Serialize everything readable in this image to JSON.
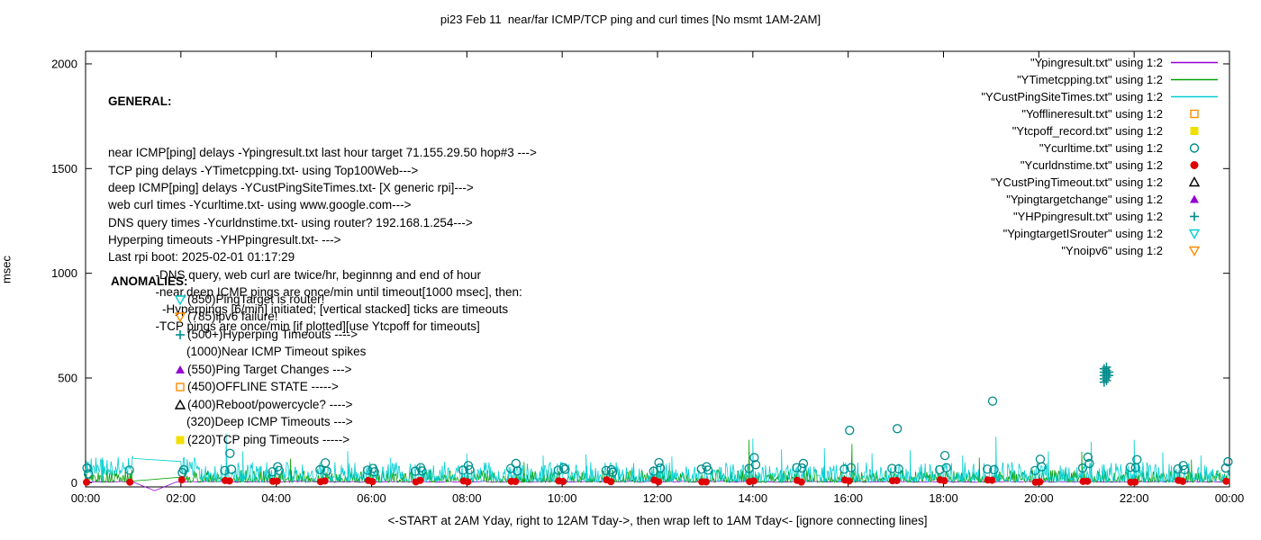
{
  "chart_data": {
    "type": "scatter",
    "title": "pi23 Feb 11  near/far ICMP/TCP ping and curl times [No msmt 1AM-2AM]",
    "xlabel": "<-START at 2AM Yday, right to 12AM Tday->, then wrap left to 1AM Tday<- [ignore connecting lines]",
    "ylabel": "msec",
    "x_range_hours": [
      0,
      24
    ],
    "y_range": [
      0,
      2000
    ],
    "x_ticks": [
      "00:00",
      "02:00",
      "04:00",
      "06:00",
      "08:00",
      "10:00",
      "12:00",
      "14:00",
      "16:00",
      "18:00",
      "20:00",
      "22:00",
      "00:00"
    ],
    "y_ticks": [
      0,
      500,
      1000,
      1500,
      2000
    ],
    "no_measurement_window": "1AM-2AM",
    "grid": false,
    "legend_position": "top-right",
    "series": [
      {
        "name": "Ypingresult",
        "style": "line",
        "color": "#9400d3",
        "gen": {
          "step_min": 3,
          "base": 2,
          "jitter": 5,
          "pow": 1,
          "seed": 3
        },
        "extra": [
          [
            1.0,
            3
          ],
          [
            1.45,
            -38
          ],
          [
            1.9,
            3
          ]
        ]
      },
      {
        "name": "YTimetcpping",
        "style": "line",
        "color": "#00a000",
        "gen": {
          "step_min": 1,
          "base": 2,
          "jitter": 60,
          "pow": 2.2,
          "seed": 5
        },
        "spikes": [
          [
            4.3,
            115
          ],
          [
            9.2,
            100
          ],
          [
            13.92,
            205
          ],
          [
            16.08,
            185
          ],
          [
            18.75,
            120
          ],
          [
            20.9,
            148
          ],
          [
            23.2,
            110
          ]
        ]
      },
      {
        "name": "YCustPingSiteTimes",
        "style": "line",
        "color": "#00ced1",
        "gen": {
          "step_min": 1,
          "base": 4,
          "jitter": 95,
          "pow": 2.0,
          "seed": 9,
          "elevated": [
            0,
            2.3,
            32
          ]
        },
        "spikes": [
          [
            0.35,
            120
          ],
          [
            2.95,
            235
          ],
          [
            3.3,
            150
          ],
          [
            5.5,
            150
          ],
          [
            6.4,
            120
          ],
          [
            8.0,
            140
          ],
          [
            9.6,
            130
          ],
          [
            10.5,
            135
          ],
          [
            12.3,
            125
          ],
          [
            14.0,
            210
          ],
          [
            14.6,
            160
          ],
          [
            15.5,
            165
          ],
          [
            16.5,
            140
          ],
          [
            17.3,
            155
          ],
          [
            18.4,
            130
          ],
          [
            19.1,
            220
          ],
          [
            20.2,
            150
          ],
          [
            21.1,
            195
          ],
          [
            22.0,
            205
          ],
          [
            22.6,
            145
          ],
          [
            23.4,
            130
          ]
        ]
      },
      {
        "name": "Yofflineresult",
        "style": "points",
        "marker": "square-open",
        "color": "#ff8c00",
        "points": []
      },
      {
        "name": "Ytcpoff_record",
        "style": "points",
        "marker": "square-filled",
        "color": "#f0e000",
        "points": []
      },
      {
        "name": "Ycurltime",
        "style": "points",
        "marker": "circle-open",
        "color": "#008b8b",
        "points": [
          [
            0.03,
            70
          ],
          [
            0.06,
            42
          ],
          [
            0.92,
            60
          ],
          [
            2.03,
            48
          ],
          [
            2.06,
            62
          ],
          [
            2.92,
            58
          ],
          [
            3.03,
            140
          ],
          [
            3.06,
            64
          ],
          [
            3.92,
            52
          ],
          [
            4.03,
            76
          ],
          [
            4.06,
            58
          ],
          [
            4.92,
            62
          ],
          [
            5.03,
            95
          ],
          [
            5.06,
            55
          ],
          [
            5.92,
            60
          ],
          [
            6.03,
            68
          ],
          [
            6.06,
            52
          ],
          [
            6.92,
            55
          ],
          [
            7.03,
            72
          ],
          [
            7.06,
            56
          ],
          [
            7.92,
            60
          ],
          [
            8.03,
            82
          ],
          [
            8.06,
            62
          ],
          [
            8.92,
            68
          ],
          [
            9.03,
            92
          ],
          [
            9.06,
            56
          ],
          [
            9.92,
            60
          ],
          [
            10.03,
            72
          ],
          [
            10.06,
            64
          ],
          [
            10.92,
            58
          ],
          [
            11.03,
            62
          ],
          [
            11.06,
            50
          ],
          [
            11.92,
            55
          ],
          [
            12.03,
            96
          ],
          [
            12.06,
            70
          ],
          [
            12.92,
            65
          ],
          [
            13.03,
            76
          ],
          [
            13.06,
            60
          ],
          [
            13.92,
            68
          ],
          [
            14.03,
            120
          ],
          [
            14.06,
            86
          ],
          [
            14.92,
            72
          ],
          [
            15.03,
            70
          ],
          [
            15.06,
            92
          ],
          [
            15.92,
            65
          ],
          [
            16.03,
            250
          ],
          [
            16.06,
            72
          ],
          [
            16.92,
            68
          ],
          [
            17.03,
            258
          ],
          [
            17.06,
            66
          ],
          [
            17.92,
            62
          ],
          [
            18.03,
            130
          ],
          [
            18.06,
            72
          ],
          [
            18.92,
            65
          ],
          [
            19.03,
            390
          ],
          [
            19.06,
            62
          ],
          [
            19.92,
            58
          ],
          [
            20.03,
            112
          ],
          [
            20.06,
            76
          ],
          [
            20.92,
            70
          ],
          [
            21.03,
            122
          ],
          [
            21.06,
            92
          ],
          [
            21.92,
            74
          ],
          [
            22.03,
            72
          ],
          [
            22.06,
            110
          ],
          [
            22.92,
            66
          ],
          [
            23.03,
            82
          ],
          [
            23.06,
            62
          ],
          [
            23.92,
            70
          ],
          [
            23.97,
            100
          ]
        ]
      },
      {
        "name": "Ycurldnstime",
        "style": "points",
        "marker": "circle-filled",
        "color": "#e00000",
        "points_gen": {
          "skip_hours": [
            1
          ],
          "offsets": [
            0.02,
            0.93
          ],
          "y_base": 2,
          "y_jitter": 12,
          "seed": 7
        }
      },
      {
        "name": "YCustPingTimeout",
        "style": "points",
        "marker": "triangle-up-open",
        "color": "#000000",
        "points": []
      },
      {
        "name": "Ypingtargetchange",
        "style": "points",
        "marker": "triangle-up-filled",
        "color": "#9400d3",
        "points": []
      },
      {
        "name": "YHPpingresult",
        "style": "points",
        "marker": "plus",
        "color": "#008b8b",
        "points": [
          [
            21.37,
            480
          ],
          [
            21.37,
            496
          ],
          [
            21.37,
            512
          ],
          [
            21.37,
            528
          ],
          [
            21.37,
            544
          ],
          [
            21.42,
            488
          ],
          [
            21.42,
            504
          ],
          [
            21.42,
            520
          ],
          [
            21.42,
            536
          ],
          [
            21.42,
            552
          ],
          [
            21.47,
            512
          ],
          [
            21.47,
            528
          ]
        ]
      },
      {
        "name": "YpingtargetISrouter",
        "style": "points",
        "marker": "triangle-down-open",
        "color": "#00ced1",
        "points": []
      },
      {
        "name": "Ynoipv6",
        "style": "points",
        "marker": "triangle-down-open",
        "color": "#ff8c00",
        "points": []
      }
    ]
  },
  "legend": [
    {
      "label": "\"Ypingresult.txt\" using 1:2",
      "marker": "line",
      "color": "#9400d3"
    },
    {
      "label": "\"YTimetcpping.txt\" using 1:2",
      "marker": "line",
      "color": "#00a000"
    },
    {
      "label": "\"YCustPingSiteTimes.txt\" using 1:2",
      "marker": "line",
      "color": "#00ced1"
    },
    {
      "label": "\"Yofflineresult.txt\" using 1:2",
      "marker": "square-open",
      "color": "#ff8c00"
    },
    {
      "label": "\"Ytcpoff_record.txt\" using 1:2",
      "marker": "square-filled",
      "color": "#f0e000"
    },
    {
      "label": "\"Ycurltime.txt\" using 1:2",
      "marker": "circle-open",
      "color": "#008b8b"
    },
    {
      "label": "\"Ycurldnstime.txt\" using 1:2",
      "marker": "circle-filled",
      "color": "#e00000"
    },
    {
      "label": "\"YCustPingTimeout.txt\" using 1:2",
      "marker": "triangle-up-open",
      "color": "#000000"
    },
    {
      "label": "\"Ypingtargetchange\" using 1:2",
      "marker": "triangle-up-filled",
      "color": "#9400d3"
    },
    {
      "label": "\"YHPpingresult.txt\" using 1:2",
      "marker": "plus",
      "color": "#008b8b"
    },
    {
      "label": "\"YpingtargetISrouter\" using 1:2",
      "marker": "triangle-down-open",
      "color": "#00ced1"
    },
    {
      "label": "\"Ynoipv6\" using 1:2",
      "marker": "triangle-down-open",
      "color": "#ff8c00"
    }
  ],
  "notes": {
    "general_heading": "GENERAL:",
    "general_lines": [
      "near ICMP[ping] delays -Ypingresult.txt last hour target 71.155.29.50 hop#3 --->",
      "TCP ping delays -YTimetcpping.txt- using Top100Web--->",
      "deep ICMP[ping] delays -YCustPingSiteTimes.txt- [X generic rpi]--->",
      "web curl times -Ycurltime.txt- using www.google.com--->",
      "DNS query times -Ycurldnstime.txt- using router? 192.168.1.254--->",
      "Hyperping timeouts -YHPpingresult.txt- --->",
      "Last rpi boot: 2025-02-01 01:17:29",
      "              -DNS query, web curl are twice/hr, beginnng and end of hour",
      "              -near,deep ICMP pings are once/min until timeout[1000 msec], then:",
      "                -Hyperpings [6/min] initiated; [vertical stacked] ticks are timeouts",
      "              -TCP pings are once/min [if plotted][use Ytcpoff for timeouts]"
    ],
    "anomalies_heading": "ANOMALIES:",
    "anomalies": [
      {
        "marker": "triangle-down-open",
        "color": "#00ced1",
        "text": "(850)PingTarget is router!"
      },
      {
        "marker": "triangle-down-open",
        "color": "#ff8c00",
        "text": "(785)ipv6 failure!"
      },
      {
        "marker": "plus",
        "color": "#008b8b",
        "text": "(500+)Hyperping Timeouts ---->"
      },
      {
        "marker": "none",
        "color": "",
        "text": "(1000)Near ICMP Timeout spikes"
      },
      {
        "marker": "triangle-up-filled",
        "color": "#9400d3",
        "text": "(550)Ping Target Changes --->"
      },
      {
        "marker": "square-open",
        "color": "#ff8c00",
        "text": "(450)OFFLINE STATE ----->"
      },
      {
        "marker": "triangle-up-open",
        "color": "#000000",
        "text": "(400)Reboot/powercycle? ---->"
      },
      {
        "marker": "none",
        "color": "",
        "text": "(320)Deep ICMP Timeouts --->"
      },
      {
        "marker": "square-filled",
        "color": "#f0e000",
        "text": "(220)TCP ping Timeouts ----->"
      }
    ]
  }
}
